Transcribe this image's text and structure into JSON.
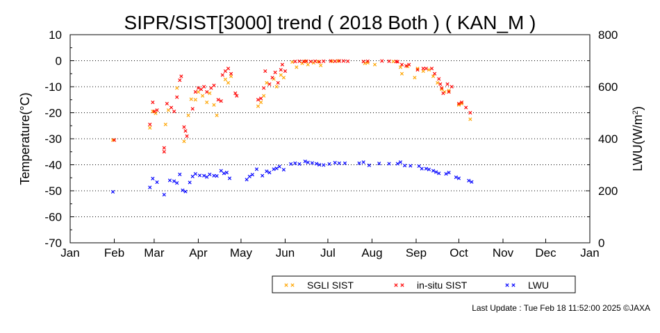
{
  "chart_data": {
    "type": "scatter",
    "title": "SIPR/SIST[3000] trend ( 2018 Both ) ( KAN_M )",
    "ylabel": "Temperature(°C)",
    "y2label_main": "LWU(W/m",
    "y2label_sup": "2",
    "y2label_end": ")",
    "ylim": [
      -70,
      10
    ],
    "y2lim": [
      0,
      800
    ],
    "yticks": [
      "10",
      "0",
      "-10",
      "-20",
      "-30",
      "-40",
      "-50",
      "-60",
      "-70"
    ],
    "y2ticks": [
      "800",
      "600",
      "400",
      "200",
      "0"
    ],
    "xticks": [
      "Jan",
      "Feb",
      "Mar",
      "Apr",
      "May",
      "Jun",
      "Jul",
      "Aug",
      "Sep",
      "Oct",
      "Nov",
      "Dec",
      "Jan"
    ],
    "grid": "horizontal dotted",
    "legend_position": "bottom-right",
    "series": [
      {
        "name": "SGLI SIST",
        "color": "#ffa500",
        "axis": "left",
        "points": [
          [
            "2018-01-31",
            -30.5
          ],
          [
            "2018-02-26",
            -25.8
          ],
          [
            "2018-02-28",
            -19.5
          ],
          [
            "2018-03-02",
            -20.2
          ],
          [
            "2018-03-09",
            -24.5
          ],
          [
            "2018-03-11",
            -19.0
          ],
          [
            "2018-03-17",
            -10.5
          ],
          [
            "2018-03-22",
            -31.0
          ],
          [
            "2018-03-25",
            -21.0
          ],
          [
            "2018-03-27",
            -14.8
          ],
          [
            "2018-03-30",
            -15.0
          ],
          [
            "2018-04-01",
            -12.0
          ],
          [
            "2018-04-04",
            -13.5
          ],
          [
            "2018-04-07",
            -16.0
          ],
          [
            "2018-04-09",
            -12.5
          ],
          [
            "2018-04-12",
            -17.0
          ],
          [
            "2018-04-14",
            -21.0
          ],
          [
            "2018-04-20",
            -7.2
          ],
          [
            "2018-04-22",
            -8.5
          ],
          [
            "2018-04-24",
            -6.0
          ],
          [
            "2018-05-13",
            -17.5
          ],
          [
            "2018-05-15",
            -16.0
          ],
          [
            "2018-05-17",
            -13.5
          ],
          [
            "2018-05-19",
            -8.5
          ],
          [
            "2018-05-24",
            -7.0
          ],
          [
            "2018-05-26",
            -10.0
          ],
          [
            "2018-05-29",
            -5.5
          ],
          [
            "2018-05-31",
            -6.5
          ],
          [
            "2018-06-06",
            -0.5
          ],
          [
            "2018-06-09",
            -2.5
          ],
          [
            "2018-06-13",
            -1.0
          ],
          [
            "2018-06-15",
            -0.2
          ],
          [
            "2018-06-17",
            -1.5
          ],
          [
            "2018-06-21",
            -0.8
          ],
          [
            "2018-06-24",
            -0.3
          ],
          [
            "2018-06-26",
            -1.8
          ],
          [
            "2018-07-04",
            -0.2
          ],
          [
            "2018-07-08",
            -0.1
          ],
          [
            "2018-07-27",
            -1.0
          ],
          [
            "2018-07-29",
            -0.8
          ],
          [
            "2018-08-03",
            -1.5
          ],
          [
            "2018-08-16",
            -0.3
          ],
          [
            "2018-08-21",
            -2.5
          ],
          [
            "2018-08-22",
            -5.0
          ],
          [
            "2018-08-26",
            -2.2
          ],
          [
            "2018-08-31",
            -6.5
          ],
          [
            "2018-09-02",
            -3.0
          ],
          [
            "2018-09-06",
            -4.0
          ],
          [
            "2018-09-10",
            -3.5
          ],
          [
            "2018-09-13",
            -6.0
          ],
          [
            "2018-09-16",
            -8.5
          ],
          [
            "2018-09-19",
            -11.0
          ],
          [
            "2018-09-21",
            -12.0
          ],
          [
            "2018-09-24",
            -11.5
          ],
          [
            "2018-10-01",
            -17.0
          ],
          [
            "2018-10-03",
            -16.5
          ],
          [
            "2018-10-09",
            -22.5
          ]
        ]
      },
      {
        "name": "in-situ SIST",
        "color": "#ff0000",
        "axis": "left",
        "points": [
          [
            "2018-02-01",
            -30.5
          ],
          [
            "2018-02-26",
            -24.5
          ],
          [
            "2018-02-28",
            -16.0
          ],
          [
            "2018-03-01",
            -19.5
          ],
          [
            "2018-03-03",
            -19.0
          ],
          [
            "2018-03-08",
            -33.5
          ],
          [
            "2018-03-08",
            -35.0
          ],
          [
            "2018-03-10",
            -16.5
          ],
          [
            "2018-03-13",
            -18.0
          ],
          [
            "2018-03-15",
            -19.5
          ],
          [
            "2018-03-17",
            -14.0
          ],
          [
            "2018-03-19",
            -7.5
          ],
          [
            "2018-03-20",
            -6.0
          ],
          [
            "2018-03-22",
            -25.5
          ],
          [
            "2018-03-23",
            -27.0
          ],
          [
            "2018-03-24",
            -29.0
          ],
          [
            "2018-03-28",
            -18.5
          ],
          [
            "2018-03-30",
            -12.0
          ],
          [
            "2018-04-01",
            -10.5
          ],
          [
            "2018-04-03",
            -11.0
          ],
          [
            "2018-04-05",
            -10.0
          ],
          [
            "2018-04-07",
            -12.0
          ],
          [
            "2018-04-10",
            -10.5
          ],
          [
            "2018-04-12",
            -9.5
          ],
          [
            "2018-04-15",
            -15.0
          ],
          [
            "2018-04-17",
            -15.5
          ],
          [
            "2018-04-18",
            -5.5
          ],
          [
            "2018-04-20",
            -4.0
          ],
          [
            "2018-04-22",
            -3.0
          ],
          [
            "2018-04-24",
            -5.0
          ],
          [
            "2018-04-27",
            -12.5
          ],
          [
            "2018-04-28",
            -13.5
          ],
          [
            "2018-05-13",
            -15.0
          ],
          [
            "2018-05-15",
            -14.5
          ],
          [
            "2018-05-17",
            -10.5
          ],
          [
            "2018-05-18",
            -4.0
          ],
          [
            "2018-05-21",
            -9.0
          ],
          [
            "2018-05-23",
            -6.5
          ],
          [
            "2018-05-25",
            -4.5
          ],
          [
            "2018-05-27",
            -8.5
          ],
          [
            "2018-05-29",
            -3.5
          ],
          [
            "2018-05-30",
            -1.5
          ],
          [
            "2018-06-01",
            -4.0
          ],
          [
            "2018-06-08",
            -0.3
          ],
          [
            "2018-06-11",
            -0.2
          ],
          [
            "2018-06-14",
            -0.3
          ],
          [
            "2018-06-16",
            -0.2
          ],
          [
            "2018-06-19",
            -0.3
          ],
          [
            "2018-06-22",
            -0.2
          ],
          [
            "2018-06-25",
            -0.4
          ],
          [
            "2018-06-28",
            -0.2
          ],
          [
            "2018-07-03",
            -0.1
          ],
          [
            "2018-07-06",
            -0.2
          ],
          [
            "2018-07-09",
            -0.1
          ],
          [
            "2018-07-12",
            -0.1
          ],
          [
            "2018-07-15",
            -0.2
          ],
          [
            "2018-07-26",
            -0.3
          ],
          [
            "2018-07-29",
            -0.2
          ],
          [
            "2018-08-08",
            -0.1
          ],
          [
            "2018-08-13",
            -0.2
          ],
          [
            "2018-08-18",
            -0.3
          ],
          [
            "2018-08-19",
            -0.4
          ],
          [
            "2018-08-22",
            -1.5
          ],
          [
            "2018-08-25",
            -2.0
          ],
          [
            "2018-08-27",
            -1.5
          ],
          [
            "2018-09-02",
            -3.5
          ],
          [
            "2018-09-06",
            -3.0
          ],
          [
            "2018-09-08",
            -3.0
          ],
          [
            "2018-09-12",
            -3.0
          ],
          [
            "2018-09-14",
            -5.0
          ],
          [
            "2018-09-17",
            -7.0
          ],
          [
            "2018-09-18",
            -9.0
          ],
          [
            "2018-09-19",
            -10.5
          ],
          [
            "2018-09-20",
            -12.5
          ],
          [
            "2018-09-23",
            -9.0
          ],
          [
            "2018-09-24",
            -12.0
          ],
          [
            "2018-09-26",
            -10.0
          ],
          [
            "2018-10-01",
            -16.5
          ],
          [
            "2018-10-03",
            -16.0
          ],
          [
            "2018-10-06",
            -18.0
          ],
          [
            "2018-10-09",
            -20.0
          ]
        ]
      },
      {
        "name": "LWU",
        "color": "#0000ff",
        "axis": "right",
        "points": [
          [
            "2018-01-31",
            196
          ],
          [
            "2018-02-26",
            213
          ],
          [
            "2018-02-28",
            247
          ],
          [
            "2018-03-03",
            233
          ],
          [
            "2018-03-08",
            185
          ],
          [
            "2018-03-12",
            240
          ],
          [
            "2018-03-15",
            237
          ],
          [
            "2018-03-17",
            230
          ],
          [
            "2018-03-19",
            263
          ],
          [
            "2018-03-21",
            202
          ],
          [
            "2018-03-23",
            197
          ],
          [
            "2018-03-26",
            232
          ],
          [
            "2018-03-28",
            255
          ],
          [
            "2018-03-30",
            265
          ],
          [
            "2018-04-02",
            259
          ],
          [
            "2018-04-05",
            258
          ],
          [
            "2018-04-07",
            253
          ],
          [
            "2018-04-09",
            263
          ],
          [
            "2018-04-12",
            258
          ],
          [
            "2018-04-14",
            257
          ],
          [
            "2018-04-17",
            277
          ],
          [
            "2018-04-19",
            267
          ],
          [
            "2018-04-21",
            270
          ],
          [
            "2018-04-23",
            248
          ],
          [
            "2018-05-05",
            243
          ],
          [
            "2018-05-07",
            255
          ],
          [
            "2018-05-09",
            262
          ],
          [
            "2018-05-12",
            283
          ],
          [
            "2018-05-16",
            258
          ],
          [
            "2018-05-19",
            275
          ],
          [
            "2018-05-21",
            270
          ],
          [
            "2018-05-24",
            283
          ],
          [
            "2018-05-26",
            286
          ],
          [
            "2018-05-28",
            293
          ],
          [
            "2018-05-31",
            281
          ],
          [
            "2018-06-05",
            303
          ],
          [
            "2018-06-08",
            306
          ],
          [
            "2018-06-11",
            303
          ],
          [
            "2018-06-15",
            313
          ],
          [
            "2018-06-17",
            309
          ],
          [
            "2018-06-20",
            307
          ],
          [
            "2018-06-23",
            304
          ],
          [
            "2018-06-25",
            300
          ],
          [
            "2018-06-28",
            299
          ],
          [
            "2018-07-02",
            303
          ],
          [
            "2018-07-06",
            308
          ],
          [
            "2018-07-09",
            306
          ],
          [
            "2018-07-13",
            306
          ],
          [
            "2018-07-23",
            306
          ],
          [
            "2018-07-26",
            310
          ],
          [
            "2018-07-30",
            298
          ],
          [
            "2018-08-06",
            305
          ],
          [
            "2018-08-13",
            304
          ],
          [
            "2018-08-19",
            304
          ],
          [
            "2018-08-21",
            310
          ],
          [
            "2018-08-24",
            297
          ],
          [
            "2018-08-28",
            296
          ],
          [
            "2018-09-03",
            295
          ],
          [
            "2018-09-05",
            285
          ],
          [
            "2018-09-08",
            285
          ],
          [
            "2018-09-10",
            282
          ],
          [
            "2018-09-13",
            277
          ],
          [
            "2018-09-15",
            272
          ],
          [
            "2018-09-17",
            267
          ],
          [
            "2018-09-22",
            265
          ],
          [
            "2018-09-24",
            270
          ],
          [
            "2018-09-29",
            252
          ],
          [
            "2018-10-01",
            248
          ],
          [
            "2018-10-08",
            239
          ],
          [
            "2018-10-10",
            234
          ]
        ]
      }
    ]
  },
  "footer": {
    "text": "Last Update : Tue Feb 18 11:52:00 2025  ©JAXA"
  }
}
